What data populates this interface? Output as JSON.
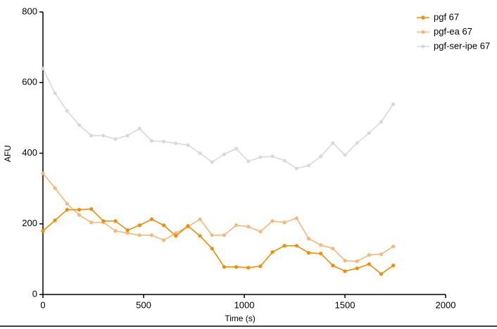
{
  "chart_data": {
    "type": "line",
    "x": [
      0,
      60,
      120,
      180,
      240,
      300,
      360,
      420,
      480,
      540,
      600,
      660,
      720,
      780,
      840,
      900,
      960,
      1020,
      1080,
      1140,
      1200,
      1260,
      1320,
      1380,
      1440,
      1500,
      1560,
      1620,
      1680,
      1740
    ],
    "series": [
      {
        "name": "pgf 67",
        "color": "#f28c00",
        "values": [
          180,
          210,
          240,
          240,
          242,
          208,
          208,
          182,
          196,
          213,
          196,
          166,
          194,
          166,
          130,
          78,
          78,
          76,
          80,
          120,
          138,
          138,
          118,
          116,
          82,
          66,
          74,
          86,
          58,
          82
        ]
      },
      {
        "name": "pgf-ea 67",
        "color": "#f7b77a",
        "values": [
          343,
          301,
          257,
          225,
          204,
          204,
          180,
          174,
          168,
          168,
          154,
          174,
          192,
          213,
          168,
          168,
          196,
          192,
          178,
          208,
          204,
          216,
          158,
          140,
          130,
          96,
          94,
          112,
          114,
          136
        ]
      },
      {
        "name": "pgf-ser-ipe 67",
        "color": "#d9d9d9",
        "values": [
          640,
          570,
          520,
          480,
          450,
          450,
          440,
          450,
          470,
          435,
          433,
          428,
          423,
          400,
          375,
          397,
          413,
          377,
          389,
          391,
          379,
          357,
          365,
          391,
          429,
          395,
          429,
          457,
          489,
          539
        ]
      }
    ],
    "xlabel": "Time (s)",
    "ylabel": "AFU",
    "xlim": [
      0,
      2000
    ],
    "ylim": [
      0,
      800
    ],
    "xticks": [
      0,
      500,
      1000,
      1500,
      2000
    ],
    "yticks": [
      0,
      200,
      400,
      600,
      800
    ],
    "grid": false,
    "legend": "upper right"
  }
}
